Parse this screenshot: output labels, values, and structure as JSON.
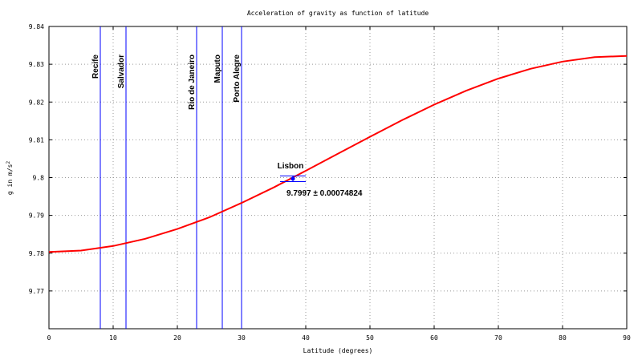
{
  "chart_data": {
    "type": "line",
    "title": "Acceleration of gravity as function of latitude",
    "xlabel": "Latitude (degrees)",
    "ylabel": "g in m/s",
    "ylabel_sup": "2",
    "xlim": [
      0,
      90
    ],
    "ylim": [
      9.76,
      9.84
    ],
    "grid": true,
    "x_ticks": [
      0,
      10,
      20,
      30,
      40,
      50,
      60,
      70,
      80,
      90
    ],
    "y_ticks": [
      9.77,
      9.78,
      9.79,
      9.8,
      9.81,
      9.82,
      9.83,
      9.84
    ],
    "y_tick_labels": [
      "9.77",
      "9.78",
      "9.79",
      "9.8",
      "9.81",
      "9.82",
      "9.83",
      "9.84"
    ],
    "curve_color": "#ff0000",
    "city_line_color": "#0000ff",
    "series": [
      {
        "x": [
          0,
          5,
          10,
          15,
          20,
          25,
          30,
          35,
          40,
          45,
          50,
          55,
          60,
          65,
          70,
          75,
          80,
          85,
          90
        ],
        "y": [
          9.7803,
          9.7807,
          9.7819,
          9.7838,
          9.7864,
          9.7895,
          9.7933,
          9.7974,
          9.8018,
          9.8063,
          9.8108,
          9.8152,
          9.8193,
          9.823,
          9.8262,
          9.8288,
          9.8307,
          9.8319,
          9.8322
        ]
      }
    ],
    "cities": [
      {
        "name": "Recife",
        "x": 8.0
      },
      {
        "name": "Salvador",
        "x": 12.0
      },
      {
        "name": "Rio de Janeiro",
        "x": 23.0
      },
      {
        "name": "Maputo",
        "x": 27.0
      },
      {
        "name": "Porto Alegre",
        "x": 30.0
      }
    ],
    "point": {
      "name": "Lisbon",
      "x": 38.0,
      "y": 9.7997,
      "error": 0.00074824,
      "label": "9.7997 ± 0.00074824",
      "color": "#0000ff"
    }
  }
}
